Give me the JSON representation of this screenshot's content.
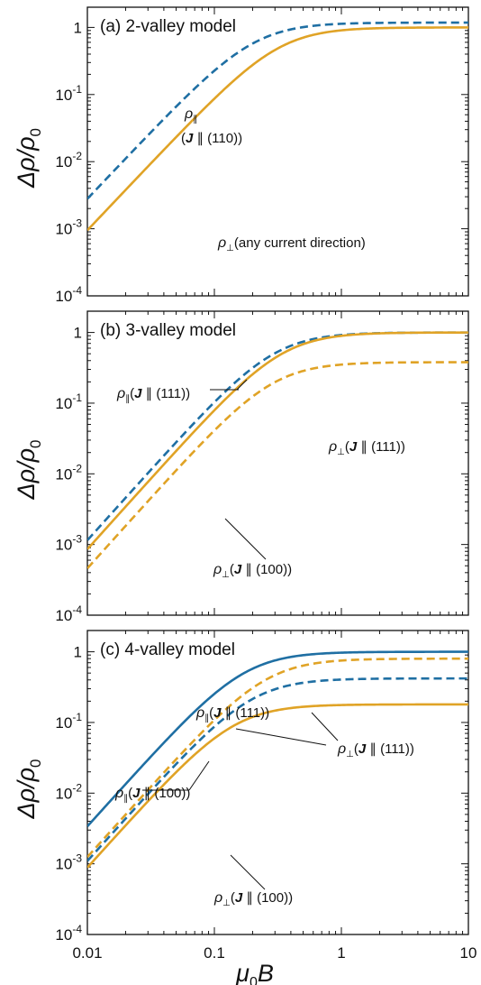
{
  "colors": {
    "blue": "#1f6fa3",
    "orange": "#e0a326",
    "axis": "#111111"
  },
  "xaxis": {
    "label_main": "μ",
    "label_sub": "0",
    "label_tail": "B",
    "ticks": [
      "0.01",
      "0.1",
      "1",
      "10"
    ]
  },
  "yaxis": {
    "label_main": "Δρ/ρ",
    "label_sub": "0"
  },
  "chart_data": [
    {
      "type": "line",
      "title": "(a) 2-valley model",
      "xscale": "log",
      "yscale": "log",
      "xlim": [
        0.01,
        10
      ],
      "ylim": [
        0.0001,
        2
      ],
      "yticks": [
        {
          "base": "10",
          "exp": "-4"
        },
        {
          "base": "10",
          "exp": "-3"
        },
        {
          "base": "10",
          "exp": "-2"
        },
        {
          "base": "10",
          "exp": "-1"
        },
        {
          "base": "1",
          "exp": ""
        }
      ],
      "series": [
        {
          "name": "ρ∥ (J ∥ (110))",
          "color": "blue",
          "dash": true,
          "sat": 1.18
        },
        {
          "name": "ρ⊥ (any current direction)",
          "color": "orange",
          "dash": false,
          "sat": 1.0
        }
      ],
      "annotations": [
        {
          "parts": [
            "ρ",
            "∥"
          ],
          "line2": [
            "(",
            "J",
            " ∥ (110))"
          ]
        },
        {
          "parts": [
            "ρ",
            "⊥",
            "(any current direction)"
          ]
        }
      ]
    },
    {
      "type": "line",
      "title": "(b) 3-valley model",
      "xscale": "log",
      "yscale": "log",
      "xlim": [
        0.01,
        10
      ],
      "ylim": [
        0.0001,
        2
      ],
      "yticks": [
        {
          "base": "10",
          "exp": "-4"
        },
        {
          "base": "10",
          "exp": "-3"
        },
        {
          "base": "10",
          "exp": "-2"
        },
        {
          "base": "10",
          "exp": "-1"
        },
        {
          "base": "1",
          "exp": ""
        }
      ],
      "series": [
        {
          "name": "ρ∥ (J ∥ (111))",
          "color": "blue",
          "dash": true,
          "sat": 1.0
        },
        {
          "name": "ρ⊥ (J ∥ (100))",
          "color": "orange",
          "dash": false,
          "sat": 1.0
        },
        {
          "name": "ρ⊥ (J ∥ (111))",
          "color": "orange",
          "dash": true,
          "sat": 0.38
        }
      ],
      "annotations": [
        {
          "parts": [
            "ρ",
            "∥",
            "(",
            "J",
            " ∥ (111))"
          ]
        },
        {
          "parts": [
            "ρ",
            "⊥",
            "(",
            "J",
            " ∥ (100))"
          ]
        },
        {
          "parts": [
            "ρ",
            "⊥",
            "(",
            "J",
            " ∥ (111))"
          ]
        }
      ]
    },
    {
      "type": "line",
      "title": "(c) 4-valley model",
      "xscale": "log",
      "yscale": "log",
      "xlim": [
        0.01,
        10
      ],
      "ylim": [
        0.0001,
        2
      ],
      "yticks": [
        {
          "base": "10",
          "exp": "-4"
        },
        {
          "base": "10",
          "exp": "-3"
        },
        {
          "base": "10",
          "exp": "-2"
        },
        {
          "base": "10",
          "exp": "-1"
        },
        {
          "base": "1",
          "exp": ""
        }
      ],
      "series": [
        {
          "name": "ρ∥ (J ∥ (100))",
          "color": "blue",
          "dash": false,
          "sat": 1.0
        },
        {
          "name": "ρ∥ (J ∥ (111))",
          "color": "orange",
          "dash": true,
          "sat": 0.8
        },
        {
          "name": "ρ⊥ (J ∥ (100))",
          "color": "blue",
          "dash": true,
          "sat": 0.42
        },
        {
          "name": "ρ⊥ (J ∥ (111))",
          "color": "orange",
          "dash": false,
          "sat": 0.18
        }
      ],
      "annotations": [
        {
          "parts": [
            "ρ",
            "∥",
            "(",
            "J",
            " ∥ (111))"
          ]
        },
        {
          "parts": [
            "ρ",
            "∥",
            "(",
            "J",
            " ∥ (100))"
          ]
        },
        {
          "parts": [
            "ρ",
            "⊥",
            "(",
            "J",
            " ∥ (111))"
          ]
        },
        {
          "parts": [
            "ρ",
            "⊥",
            "(",
            "J",
            " ∥ (100))"
          ]
        }
      ]
    }
  ]
}
